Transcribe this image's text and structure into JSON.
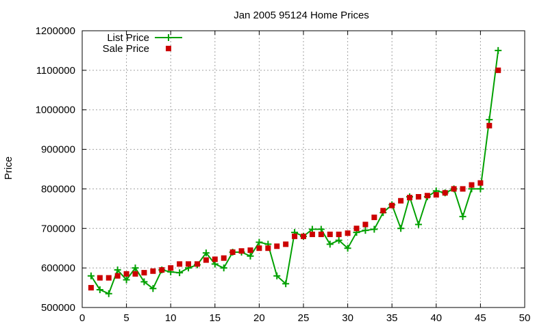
{
  "chart_data": {
    "type": "line",
    "title": "Jan 2005 95124 Home Prices",
    "xlabel": "",
    "ylabel": "Price",
    "xlim": [
      0,
      50
    ],
    "ylim": [
      500000,
      1200000
    ],
    "xticks": [
      0,
      5,
      10,
      15,
      20,
      25,
      30,
      35,
      40,
      45,
      50
    ],
    "yticks": [
      500000,
      600000,
      700000,
      800000,
      900000,
      1000000,
      1100000,
      1200000
    ],
    "grid": true,
    "legend_position": "top-left",
    "series": [
      {
        "name": "List Price",
        "style": "line-plus",
        "color": "#00a000",
        "x": [
          1,
          2,
          3,
          4,
          5,
          6,
          7,
          8,
          9,
          10,
          11,
          12,
          13,
          14,
          15,
          16,
          17,
          18,
          19,
          20,
          21,
          22,
          23,
          24,
          25,
          26,
          27,
          28,
          29,
          30,
          31,
          32,
          33,
          34,
          35,
          36,
          37,
          38,
          39,
          40,
          41,
          42,
          43,
          44,
          45,
          46,
          47
        ],
        "y": [
          580000,
          545000,
          535000,
          595000,
          570000,
          600000,
          565000,
          548000,
          595000,
          590000,
          588000,
          600000,
          608000,
          638000,
          610000,
          600000,
          640000,
          640000,
          630000,
          665000,
          660000,
          580000,
          560000,
          690000,
          680000,
          698000,
          698000,
          660000,
          670000,
          650000,
          690000,
          695000,
          698000,
          740000,
          760000,
          700000,
          780000,
          710000,
          780000,
          795000,
          790000,
          800000,
          730000,
          800000,
          800000,
          975000,
          1150000
        ]
      },
      {
        "name": "Sale Price",
        "style": "square-markers",
        "color": "#cc0000",
        "x": [
          1,
          2,
          3,
          4,
          5,
          6,
          7,
          8,
          9,
          10,
          11,
          12,
          13,
          14,
          15,
          16,
          17,
          18,
          19,
          20,
          21,
          22,
          23,
          24,
          25,
          26,
          27,
          28,
          29,
          30,
          31,
          32,
          33,
          34,
          35,
          36,
          37,
          38,
          39,
          40,
          41,
          42,
          43,
          44,
          45,
          46,
          47
        ],
        "y": [
          550000,
          575000,
          575000,
          580000,
          585000,
          585000,
          588000,
          592000,
          595000,
          600000,
          610000,
          610000,
          610000,
          620000,
          622000,
          625000,
          640000,
          643000,
          645000,
          650000,
          650000,
          655000,
          660000,
          680000,
          680000,
          685000,
          685000,
          685000,
          685000,
          688000,
          700000,
          710000,
          728000,
          745000,
          758000,
          770000,
          778000,
          780000,
          783000,
          785000,
          790000,
          800000,
          800000,
          810000,
          815000,
          960000,
          1100000
        ]
      }
    ]
  }
}
